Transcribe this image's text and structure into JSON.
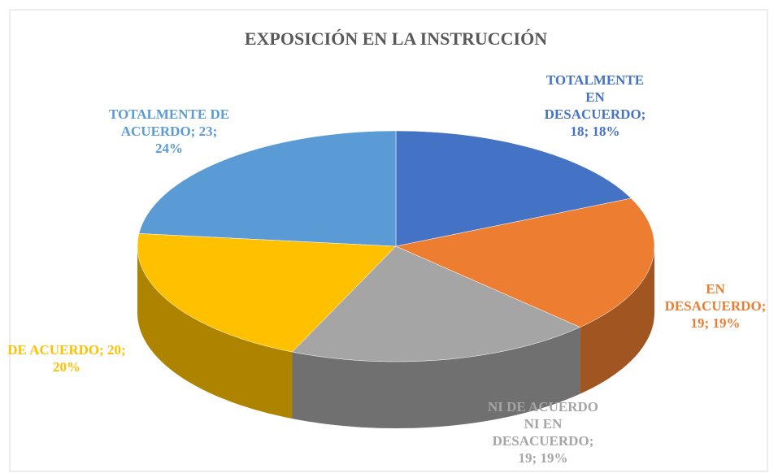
{
  "chart_data": {
    "type": "pie3d",
    "title": "EXPOSICIÓN EN LA INSTRUCCIÓN",
    "labels": [
      "TOTALMENTE EN DESACUERDO; 18; 18%",
      "EN DESACUERDO; 19; 19%",
      "NI DE ACUERDO NI EN DESACUERDO; 19; 19%",
      "DE ACUERDO; 20; 20%",
      "TOTALMENTE DE ACUERDO; 23; 24%"
    ],
    "values": [
      18,
      19,
      19,
      20,
      23
    ],
    "colors": [
      "#4472c4",
      "#ed7d31",
      "#a5a5a5",
      "#ffc000",
      "#5b9bd5"
    ]
  }
}
